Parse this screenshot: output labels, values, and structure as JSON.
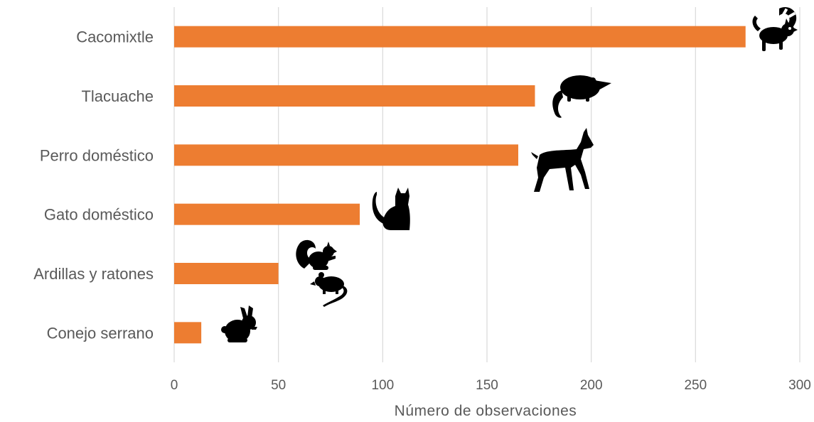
{
  "chart_data": {
    "type": "bar",
    "orientation": "horizontal",
    "categories": [
      "Cacomixtle",
      "Tlacuache",
      "Perro doméstico",
      "Gato doméstico",
      "Ardillas y ratones",
      "Conejo serrano"
    ],
    "values": [
      274,
      173,
      165,
      89,
      50,
      13
    ],
    "xlabel": "Número de observaciones",
    "ylabel": "",
    "xlim": [
      0,
      300
    ],
    "xticks": [
      "0",
      "50",
      "100",
      "150",
      "200",
      "250",
      "300"
    ],
    "grid": "vertical",
    "bar_color": "#ED7D31",
    "icons": [
      "ringtail-icon",
      "opossum-icon",
      "doberman-icon",
      "cat-icon",
      "squirrel-icon",
      "mouse-icon",
      "rabbit-icon"
    ]
  }
}
